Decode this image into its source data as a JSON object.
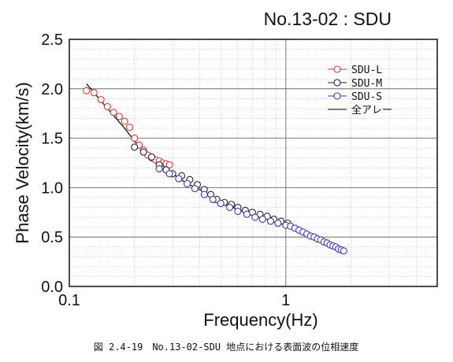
{
  "chart_data": {
    "type": "scatter",
    "title": "No.13-02 : SDU",
    "xlabel": "Frequency(Hz)",
    "ylabel": "Phase Velocity(km/s)",
    "x_scale": "log",
    "xlim": [
      0.1,
      5.0
    ],
    "ylim": [
      0.0,
      2.5
    ],
    "x_tick_labels": [
      {
        "value": 0.1,
        "label": "0.1"
      },
      {
        "value": 1,
        "label": "1"
      }
    ],
    "y_tick_labels": [
      {
        "value": 0.0,
        "label": "0.0"
      },
      {
        "value": 0.5,
        "label": "0.5"
      },
      {
        "value": 1.0,
        "label": "1.0"
      },
      {
        "value": 1.5,
        "label": "1.5"
      },
      {
        "value": 2.0,
        "label": "2.0"
      },
      {
        "value": 2.5,
        "label": "2.5"
      }
    ],
    "grid": true,
    "legend_position": "top-right",
    "series": [
      {
        "name": "SDU-L",
        "marker": "open-circle",
        "color": "#c23a3a",
        "points": [
          [
            0.12,
            1.98
          ],
          [
            0.13,
            1.96
          ],
          [
            0.14,
            1.89
          ],
          [
            0.15,
            1.82
          ],
          [
            0.16,
            1.76
          ],
          [
            0.17,
            1.72
          ],
          [
            0.18,
            1.67
          ],
          [
            0.19,
            1.61
          ],
          [
            0.2,
            1.5
          ],
          [
            0.21,
            1.43
          ],
          [
            0.22,
            1.38
          ],
          [
            0.23,
            1.33
          ],
          [
            0.24,
            1.3
          ],
          [
            0.25,
            1.28
          ],
          [
            0.26,
            1.27
          ],
          [
            0.27,
            1.25
          ],
          [
            0.28,
            1.24
          ],
          [
            0.29,
            1.23
          ]
        ]
      },
      {
        "name": "SDU-M",
        "marker": "open-circle",
        "color": "#222222",
        "points": [
          [
            0.2,
            1.41
          ],
          [
            0.22,
            1.36
          ],
          [
            0.24,
            1.31
          ],
          [
            0.26,
            1.23
          ],
          [
            0.28,
            1.18
          ],
          [
            0.3,
            1.14
          ],
          [
            0.33,
            1.12
          ],
          [
            0.36,
            1.08
          ],
          [
            0.39,
            1.03
          ],
          [
            0.42,
            0.98
          ],
          [
            0.45,
            0.93
          ],
          [
            0.48,
            0.88
          ],
          [
            0.52,
            0.85
          ],
          [
            0.56,
            0.83
          ],
          [
            0.6,
            0.8
          ],
          [
            0.65,
            0.77
          ],
          [
            0.7,
            0.75
          ],
          [
            0.76,
            0.73
          ],
          [
            0.82,
            0.71
          ],
          [
            0.88,
            0.68
          ],
          [
            0.95,
            0.66
          ],
          [
            1.02,
            0.64
          ]
        ]
      },
      {
        "name": "SDU-S",
        "marker": "open-circle",
        "color": "#3a3aa8",
        "points": [
          [
            0.26,
            1.19
          ],
          [
            0.29,
            1.14
          ],
          [
            0.32,
            1.09
          ],
          [
            0.35,
            1.04
          ],
          [
            0.38,
            0.99
          ],
          [
            0.42,
            0.93
          ],
          [
            0.46,
            0.88
          ],
          [
            0.5,
            0.84
          ],
          [
            0.55,
            0.8
          ],
          [
            0.6,
            0.76
          ],
          [
            0.66,
            0.73
          ],
          [
            0.72,
            0.7
          ],
          [
            0.78,
            0.68
          ],
          [
            0.85,
            0.66
          ],
          [
            0.92,
            0.64
          ],
          [
            1.0,
            0.62
          ],
          [
            1.05,
            0.61
          ],
          [
            1.1,
            0.59
          ],
          [
            1.15,
            0.57
          ],
          [
            1.2,
            0.55
          ],
          [
            1.25,
            0.53
          ],
          [
            1.3,
            0.51
          ],
          [
            1.35,
            0.5
          ],
          [
            1.4,
            0.48
          ],
          [
            1.45,
            0.47
          ],
          [
            1.5,
            0.45
          ],
          [
            1.55,
            0.44
          ],
          [
            1.6,
            0.42
          ],
          [
            1.65,
            0.41
          ],
          [
            1.7,
            0.4
          ],
          [
            1.75,
            0.38
          ],
          [
            1.8,
            0.37
          ],
          [
            1.85,
            0.36
          ]
        ]
      },
      {
        "name": "全アレー",
        "marker": "line",
        "color": "#000000",
        "points": [
          [
            0.12,
            2.05
          ],
          [
            0.15,
            1.8
          ],
          [
            0.18,
            1.6
          ],
          [
            0.2,
            1.47
          ],
          [
            0.22,
            1.38
          ],
          [
            0.25,
            1.28
          ],
          [
            0.3,
            1.14
          ],
          [
            0.35,
            1.04
          ],
          [
            0.4,
            0.98
          ],
          [
            0.45,
            0.92
          ],
          [
            0.5,
            0.86
          ],
          [
            0.55,
            0.81
          ],
          [
            0.6,
            0.78
          ],
          [
            0.7,
            0.73
          ],
          [
            0.8,
            0.69
          ],
          [
            0.9,
            0.66
          ],
          [
            1.0,
            0.63
          ],
          [
            1.2,
            0.56
          ],
          [
            1.4,
            0.49
          ],
          [
            1.6,
            0.43
          ],
          [
            1.85,
            0.37
          ]
        ]
      }
    ]
  },
  "caption": "図 2.4-19　No.13-02-SDU 地点における表面波の位相速度"
}
